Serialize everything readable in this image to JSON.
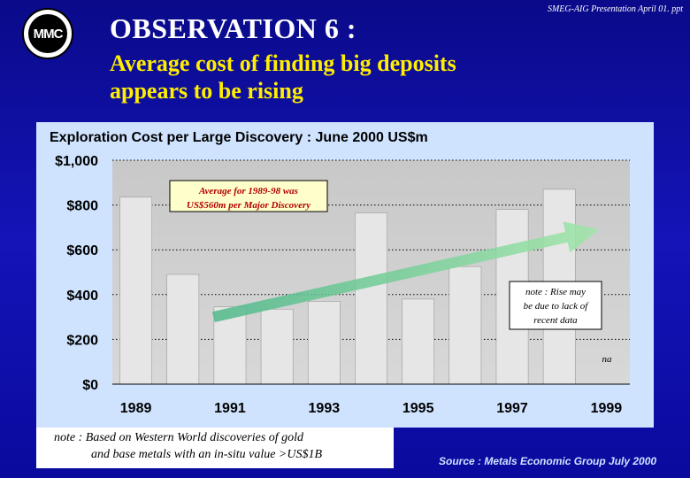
{
  "header": {
    "logo_text": "MMC",
    "reference": "SMEG-AIG Presentation April 01. ppt",
    "title": "OBSERVATION 6 :",
    "subtitle_line1": "Average cost of finding big deposits",
    "subtitle_line2": "appears to be rising"
  },
  "chart_data": {
    "type": "bar",
    "title": "Exploration Cost per Large Discovery : June 2000 US$m",
    "categories": [
      "1989",
      "1990",
      "1991",
      "1992",
      "1993",
      "1994",
      "1995",
      "1996",
      "1997",
      "1998",
      "1999"
    ],
    "x_tick_labels": [
      "1989",
      "1991",
      "1993",
      "1995",
      "1997",
      "1999"
    ],
    "values": [
      835,
      490,
      345,
      335,
      370,
      765,
      380,
      525,
      780,
      870,
      null
    ],
    "ylim": [
      0,
      1000
    ],
    "y_tick_labels": [
      "$1,000",
      "$800",
      "$600",
      "$400",
      "$200",
      "$0"
    ],
    "y_ticks": [
      1000,
      800,
      600,
      400,
      200,
      0
    ],
    "grid": true,
    "trend_arrow": {
      "from": {
        "x": "1991",
        "y": 300
      },
      "to": {
        "x": "1999",
        "y": 690
      }
    },
    "annotations": {
      "average": {
        "line1": "Average for 1989-98 was",
        "line2": "US$560m per Major Discovery"
      },
      "note_rise": {
        "line1": "note : Rise may",
        "line2": "be due to lack of",
        "line3": "recent data"
      },
      "na": "na"
    },
    "colors": {
      "bar": "#e6e6e6",
      "panel": "#cfe3ff",
      "arrow": "#7fd49a",
      "annotation_text": "#b30000",
      "annotation_fill": "#ffffcc"
    }
  },
  "footer": {
    "note_line1": "note : Based on Western World discoveries of gold",
    "note_line2": "and base metals with  an in-situ value >US$1B",
    "source": "Source : Metals Economic Group July 2000"
  }
}
